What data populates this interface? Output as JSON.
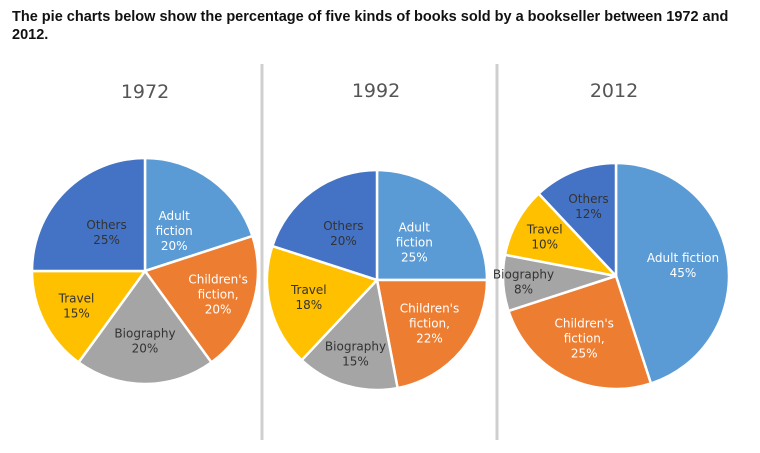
{
  "heading": "The pie charts below show the percentage of five kinds of books sold by a bookseller between 1972 and 2012.",
  "chart_data": [
    {
      "type": "pie",
      "title": "1972",
      "slices": [
        {
          "label": "Adult fiction",
          "value": 20,
          "text": [
            "Adult",
            "fiction",
            "20%"
          ],
          "color": "#5B9BD5",
          "text_color": "#ffffff"
        },
        {
          "label": "Children's fiction",
          "value": 20,
          "text": [
            "Children's",
            "fiction,",
            "20%"
          ],
          "color": "#ED7D31",
          "text_color": "#ffffff"
        },
        {
          "label": "Biography",
          "value": 20,
          "text": [
            "Biography",
            "20%"
          ],
          "color": "#A5A5A5",
          "text_color": "#333333"
        },
        {
          "label": "Travel",
          "value": 15,
          "text": [
            "Travel",
            "15%"
          ],
          "color": "#FFC000",
          "text_color": "#333333"
        },
        {
          "label": "Others",
          "value": 25,
          "text": [
            "Others",
            "25%"
          ],
          "color": "#4472C4",
          "text_color": "#333333"
        }
      ]
    },
    {
      "type": "pie",
      "title": "1992",
      "slices": [
        {
          "label": "Adult fiction",
          "value": 25,
          "text": [
            "Adult",
            "fiction",
            "25%"
          ],
          "color": "#5B9BD5",
          "text_color": "#ffffff"
        },
        {
          "label": "Children's fiction",
          "value": 22,
          "text": [
            "Children's",
            "fiction,",
            "22%"
          ],
          "color": "#ED7D31",
          "text_color": "#ffffff"
        },
        {
          "label": "Biography",
          "value": 15,
          "text": [
            "Biography",
            "15%"
          ],
          "color": "#A5A5A5",
          "text_color": "#333333"
        },
        {
          "label": "Travel",
          "value": 18,
          "text": [
            "Travel",
            "18%"
          ],
          "color": "#FFC000",
          "text_color": "#333333"
        },
        {
          "label": "Others",
          "value": 20,
          "text": [
            "Others",
            "20%"
          ],
          "color": "#4472C4",
          "text_color": "#333333"
        }
      ]
    },
    {
      "type": "pie",
      "title": "2012",
      "slices": [
        {
          "label": "Adult fiction",
          "value": 45,
          "text": [
            "Adult fiction",
            "45%"
          ],
          "color": "#5B9BD5",
          "text_color": "#ffffff"
        },
        {
          "label": "Children's fiction",
          "value": 25,
          "text": [
            "Children's",
            "fiction,",
            "25%"
          ],
          "color": "#ED7D31",
          "text_color": "#ffffff"
        },
        {
          "label": "Biography",
          "value": 8,
          "text": [
            "Biography",
            "8%"
          ],
          "color": "#A5A5A5",
          "text_color": "#333333"
        },
        {
          "label": "Travel",
          "value": 10,
          "text": [
            "Travel",
            "10%"
          ],
          "color": "#FFC000",
          "text_color": "#333333"
        },
        {
          "label": "Others",
          "value": 12,
          "text": [
            "Others",
            "12%"
          ],
          "color": "#4472C4",
          "text_color": "#333333"
        }
      ]
    }
  ]
}
